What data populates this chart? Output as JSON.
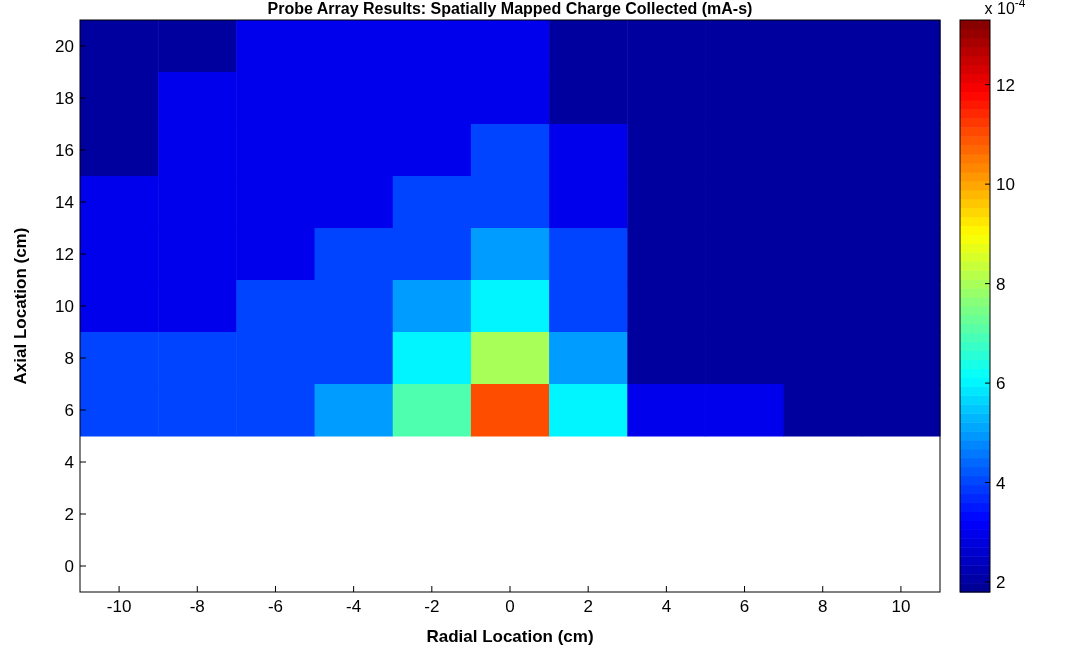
{
  "chart_data": {
    "type": "heatmap",
    "title": "Probe Array Results: Spatially Mapped Charge Collected (mA-s)",
    "xlabel": "Radial Location (cm)",
    "ylabel": "Axial Location (cm)",
    "clabel": "x 10$^{-4}$",
    "categories": [
      "-10",
      "-8",
      "-6",
      "-4",
      "-2",
      "0",
      "2",
      "4",
      "6",
      "8",
      "10"
    ],
    "y_categories": [
      "20",
      "18",
      "16",
      "14",
      "12",
      "10",
      "8",
      "6",
      "4",
      "2",
      "0"
    ],
    "cells": [
      [
        2,
        2,
        3,
        3,
        3,
        3,
        2,
        2,
        2,
        2,
        2
      ],
      [
        2,
        3,
        3,
        3,
        3,
        3,
        2,
        2,
        2,
        2,
        2
      ],
      [
        2,
        3,
        3,
        3,
        3,
        4,
        3,
        2,
        2,
        2,
        2
      ],
      [
        3,
        3,
        3,
        3,
        4,
        4,
        3,
        2,
        2,
        2,
        2
      ],
      [
        3,
        3,
        3,
        4,
        4,
        5,
        4,
        2,
        2,
        2,
        2
      ],
      [
        3,
        3,
        4,
        4,
        5,
        6,
        4,
        2,
        2,
        2,
        2
      ],
      [
        4,
        4,
        4,
        4,
        6,
        8,
        5,
        2,
        2,
        2,
        2
      ],
      [
        4,
        4,
        4,
        5,
        7,
        11,
        6,
        3,
        3,
        2,
        2
      ],
      [
        null,
        null,
        null,
        null,
        null,
        null,
        null,
        null,
        null,
        null,
        null
      ],
      [
        null,
        null,
        null,
        null,
        null,
        null,
        null,
        null,
        null,
        null,
        null
      ],
      [
        null,
        null,
        null,
        null,
        null,
        null,
        null,
        null,
        null,
        null,
        null
      ]
    ],
    "clim": [
      1.8,
      13.3
    ],
    "cticks": [
      2,
      4,
      6,
      8,
      10,
      12
    ]
  }
}
